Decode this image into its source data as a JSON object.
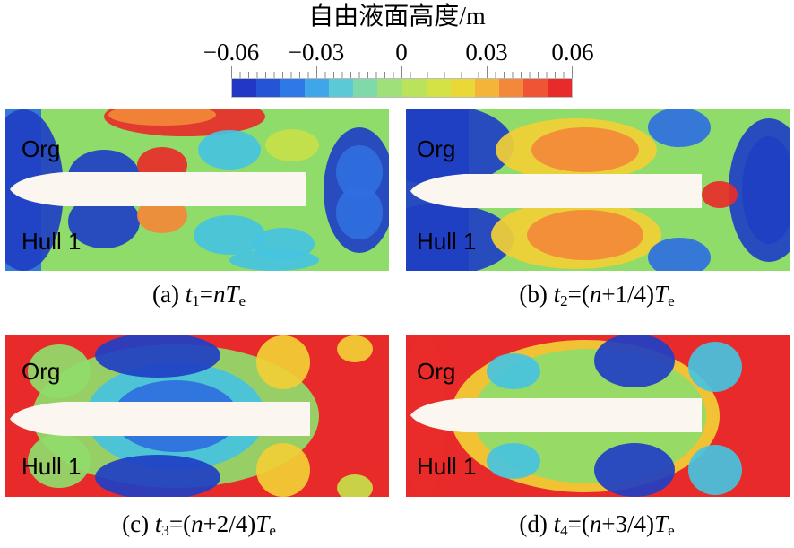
{
  "colorbar": {
    "title": "自由液面高度/m",
    "ticks": [
      "−0.06",
      "−0.03",
      "0",
      "0.03",
      "0.06"
    ],
    "colors": [
      "#2138c6",
      "#2554d6",
      "#2e79e6",
      "#3fa6ea",
      "#5cc9d6",
      "#7fd9a8",
      "#9fe07a",
      "#b8e35a",
      "#d4e246",
      "#e9d838",
      "#f4b43a",
      "#f3873a",
      "#ef5534",
      "#e82a2a"
    ]
  },
  "panels": [
    {
      "org_label": "Org",
      "hull_label": "Hull 1",
      "caption": {
        "pre": "(a) ",
        "var": "t",
        "sub": "1",
        "mid": "=",
        "n": "nT",
        "post_open": "",
        "frac": "",
        "close": "",
        "sub2": "e"
      }
    },
    {
      "org_label": "Org",
      "hull_label": "Hull 1",
      "caption": {
        "pre": "(b) ",
        "var": "t",
        "sub": "2",
        "mid": "=(",
        "n": "n",
        "post_open": "+1/4)",
        "frac": "T",
        "close": "",
        "sub2": "e"
      }
    },
    {
      "org_label": "Org",
      "hull_label": "Hull 1",
      "caption": {
        "pre": "(c) ",
        "var": "t",
        "sub": "3",
        "mid": "=(",
        "n": "n",
        "post_open": "+2/4)",
        "frac": "T",
        "close": "",
        "sub2": "e"
      }
    },
    {
      "org_label": "Org",
      "hull_label": "Hull 1",
      "caption": {
        "pre": "(d) ",
        "var": "t",
        "sub": "4",
        "mid": "=(",
        "n": "n",
        "post_open": "+3/4)",
        "frac": "T",
        "close": "",
        "sub2": "e"
      }
    }
  ],
  "palette": {
    "deep_blue": "#1f3fc4",
    "blue": "#2f6fe0",
    "cyan": "#47c3df",
    "green": "#8fdc6a",
    "yellow_green": "#c6e04a",
    "yellow": "#f2cf36",
    "orange": "#f3883a",
    "red": "#e82b2a",
    "hull": "#fbf6ef"
  }
}
